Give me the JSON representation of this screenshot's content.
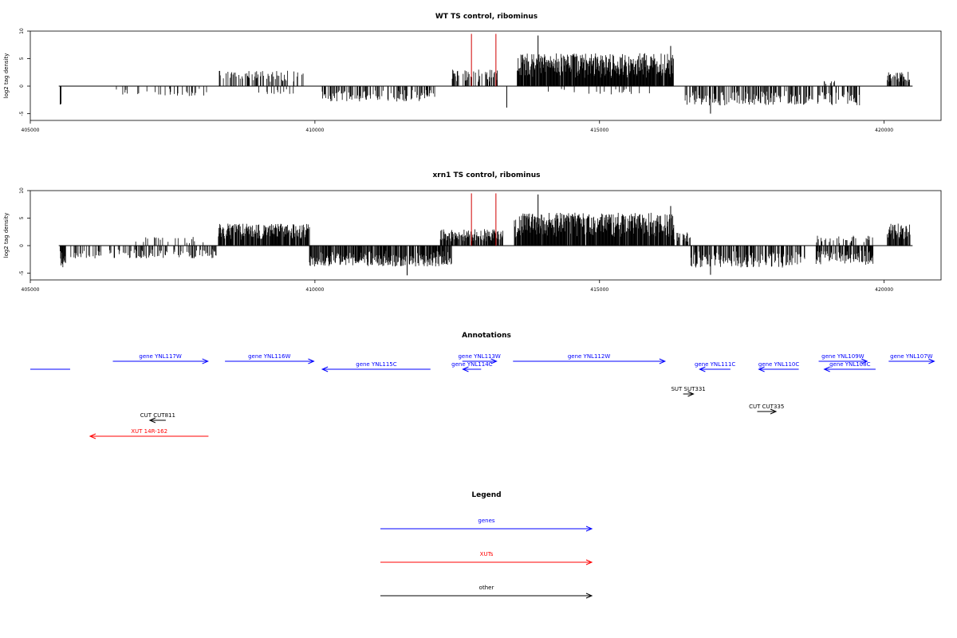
{
  "chart_data": [
    {
      "type": "bar",
      "title": "WT TS control, ribominus",
      "xlabel": "",
      "ylabel": "log2 tag density",
      "xlim": [
        405000,
        421000
      ],
      "ylim": [
        -5,
        10
      ],
      "x_ticks": [
        "405000",
        "410000",
        "415000",
        "420000"
      ],
      "y_ticks": [
        "-5",
        "0",
        "5",
        "10"
      ],
      "data_range": [
        405500,
        420500
      ],
      "highlight_lines": [
        {
          "x": 412750,
          "y": 9.5,
          "color": "#d00000"
        },
        {
          "x": 413180,
          "y": 9.5,
          "color": "#d00000"
        }
      ],
      "regions": [
        {
          "start": 405520,
          "end": 405540,
          "sign": -1,
          "max": 3.5,
          "density": 1.0
        },
        {
          "start": 406500,
          "end": 408100,
          "sign": -1,
          "max": 1.8,
          "density": 0.15
        },
        {
          "start": 408300,
          "end": 409800,
          "sign": 1,
          "max": 2.8,
          "density": 0.3
        },
        {
          "start": 409000,
          "end": 409700,
          "sign": -1,
          "max": 1.5,
          "density": 0.1
        },
        {
          "start": 410100,
          "end": 412100,
          "sign": -1,
          "max": 2.8,
          "density": 0.35
        },
        {
          "start": 412400,
          "end": 413200,
          "sign": 1,
          "max": 3.0,
          "density": 0.4
        },
        {
          "start": 413550,
          "end": 416300,
          "sign": 1,
          "max": 6.0,
          "density": 0.95
        },
        {
          "start": 414000,
          "end": 416000,
          "sign": -1,
          "max": 1.5,
          "density": 0.08
        },
        {
          "start": 416500,
          "end": 419600,
          "sign": -1,
          "max": 3.5,
          "density": 0.45
        },
        {
          "start": 418900,
          "end": 419200,
          "sign": 1,
          "max": 1.0,
          "density": 0.15
        },
        {
          "start": 420050,
          "end": 420450,
          "sign": 1,
          "max": 2.6,
          "density": 0.6
        }
      ],
      "peaks": [
        {
          "x": 413920,
          "y": 9.2
        },
        {
          "x": 416250,
          "y": 7.3
        },
        {
          "x": 416950,
          "y": -5.0
        },
        {
          "x": 413370,
          "y": -3.9
        },
        {
          "x": 418950,
          "y": 0.9
        }
      ],
      "seed": 7
    },
    {
      "type": "bar",
      "title": "xrn1 TS control, ribominus",
      "xlabel": "",
      "ylabel": "log2 tag density",
      "xlim": [
        405000,
        421000
      ],
      "ylim": [
        -5,
        10
      ],
      "x_ticks": [
        "405000",
        "410000",
        "415000",
        "420000"
      ],
      "y_ticks": [
        "-5",
        "0",
        "5",
        "10"
      ],
      "data_range": [
        405500,
        420500
      ],
      "highlight_lines": [
        {
          "x": 412750,
          "y": 9.5,
          "color": "#d00000"
        },
        {
          "x": 413180,
          "y": 9.5,
          "color": "#d00000"
        }
      ],
      "regions": [
        {
          "start": 405520,
          "end": 405620,
          "sign": -1,
          "max": 4.0,
          "density": 0.9
        },
        {
          "start": 405700,
          "end": 408300,
          "sign": -1,
          "max": 2.3,
          "density": 0.3
        },
        {
          "start": 406800,
          "end": 408200,
          "sign": 1,
          "max": 1.6,
          "density": 0.15
        },
        {
          "start": 408300,
          "end": 409900,
          "sign": 1,
          "max": 4.0,
          "density": 0.85
        },
        {
          "start": 409900,
          "end": 412400,
          "sign": -1,
          "max": 3.8,
          "density": 0.8
        },
        {
          "start": 412200,
          "end": 413300,
          "sign": 1,
          "max": 3.0,
          "density": 0.7
        },
        {
          "start": 413500,
          "end": 416300,
          "sign": 1,
          "max": 6.0,
          "density": 0.95
        },
        {
          "start": 416300,
          "end": 416600,
          "sign": 1,
          "max": 2.5,
          "density": 0.5
        },
        {
          "start": 416600,
          "end": 418600,
          "sign": -1,
          "max": 4.0,
          "density": 0.55
        },
        {
          "start": 418800,
          "end": 419800,
          "sign": 1,
          "max": 1.8,
          "density": 0.3
        },
        {
          "start": 418800,
          "end": 419800,
          "sign": -1,
          "max": 3.5,
          "density": 0.6
        },
        {
          "start": 420050,
          "end": 420450,
          "sign": 1,
          "max": 4.0,
          "density": 0.8
        }
      ],
      "peaks": [
        {
          "x": 413920,
          "y": 9.3
        },
        {
          "x": 416250,
          "y": 7.2
        },
        {
          "x": 416950,
          "y": -5.3
        },
        {
          "x": 411620,
          "y": -5.4
        }
      ],
      "seed": 19
    }
  ],
  "annotations": {
    "title": "Annotations",
    "xlim": [
      405000,
      421000
    ],
    "items": [
      {
        "label": "",
        "start": 405000,
        "end": 405700,
        "row": 1,
        "dir": 0,
        "color": "#0000ff"
      },
      {
        "label": "gene YNL117W",
        "start": 406450,
        "end": 408120,
        "row": 0,
        "dir": 1,
        "color": "#0000ff"
      },
      {
        "label": "gene YNL116W",
        "start": 408420,
        "end": 409980,
        "row": 0,
        "dir": 1,
        "color": "#0000ff"
      },
      {
        "label": "gene YNL115C",
        "start": 410130,
        "end": 412030,
        "row": 1,
        "dir": -1,
        "color": "#0000ff"
      },
      {
        "label": "gene YNL113W",
        "start": 412590,
        "end": 413190,
        "row": 0,
        "dir": 1,
        "color": "#0000ff"
      },
      {
        "label": "gene YNL114C",
        "start": 412600,
        "end": 412920,
        "row": 1,
        "dir": -1,
        "color": "#0000ff"
      },
      {
        "label": "gene YNL112W",
        "start": 413480,
        "end": 416150,
        "row": 0,
        "dir": 1,
        "color": "#0000ff"
      },
      {
        "label": "gene YNL111C",
        "start": 416760,
        "end": 417300,
        "row": 1,
        "dir": -1,
        "color": "#0000ff"
      },
      {
        "label": "gene YNL110C",
        "start": 417800,
        "end": 418500,
        "row": 1,
        "dir": -1,
        "color": "#0000ff"
      },
      {
        "label": "gene YNL109W",
        "start": 418850,
        "end": 419700,
        "row": 0,
        "dir": 1,
        "color": "#0000ff"
      },
      {
        "label": "gene YNL108C",
        "start": 418950,
        "end": 419850,
        "row": 1,
        "dir": -1,
        "color": "#0000ff"
      },
      {
        "label": "gene YNL107W",
        "start": 420080,
        "end": 420880,
        "row": 0,
        "dir": 1,
        "color": "#0000ff"
      },
      {
        "label": "SUT SUT331",
        "start": 416470,
        "end": 416650,
        "row": 2,
        "dir": 1,
        "color": "#000000"
      },
      {
        "label": "CUT CUT335",
        "start": 417770,
        "end": 418100,
        "row": 3,
        "dir": 1,
        "color": "#000000"
      },
      {
        "label": "CUT CUT811",
        "start": 407100,
        "end": 407380,
        "row": 4,
        "dir": -1,
        "color": "#000000"
      },
      {
        "label": "XUT 14R-162",
        "start": 406050,
        "end": 408130,
        "row": 5,
        "dir": -1,
        "color": "#ff0000"
      }
    ]
  },
  "legend": {
    "title": "Legend",
    "items": [
      {
        "label": "genes",
        "color": "#0000ff"
      },
      {
        "label": "XUTs",
        "color": "#ff0000"
      },
      {
        "label": "other",
        "color": "#000000"
      }
    ]
  }
}
